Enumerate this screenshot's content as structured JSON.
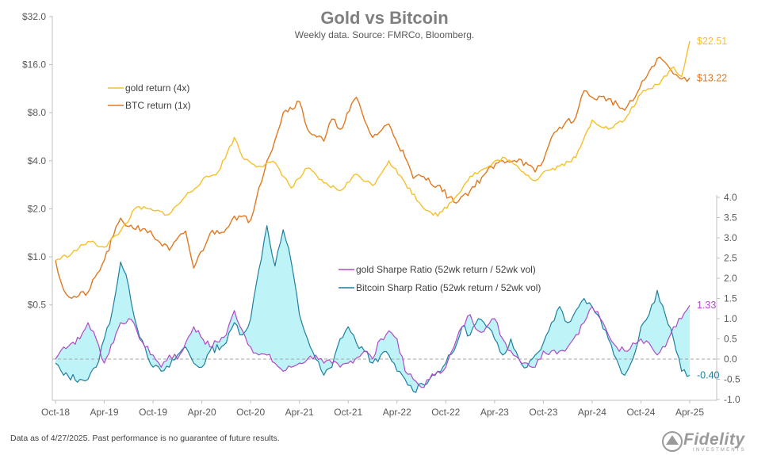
{
  "chart_data": {
    "title": "Gold vs Bitcoin",
    "subtitle": "Weekly data.  Source: FMRCo, Bloomberg.",
    "x_ticks": [
      "Oct-18",
      "Apr-19",
      "Oct-19",
      "Apr-20",
      "Oct-20",
      "Apr-21",
      "Oct-21",
      "Apr-22",
      "Oct-22",
      "Apr-23",
      "Oct-23",
      "Apr-24",
      "Oct-24",
      "Apr-25"
    ],
    "top_panel": {
      "type": "line",
      "y_scale": "log2",
      "y_ticks": [
        "$0.5",
        "$1.0",
        "$2.0",
        "$4.0",
        "$8.0",
        "$16.0",
        "$32.0"
      ],
      "series": [
        {
          "name": "gold return (4x)",
          "color": "#f5c02a",
          "end_label": "$22.51",
          "points": [
            [
              "Oct-18",
              0.95
            ],
            [
              "Dec-18",
              1.05
            ],
            [
              "Feb-19",
              1.25
            ],
            [
              "Apr-19",
              1.15
            ],
            [
              "Jun-19",
              1.45
            ],
            [
              "Aug-19",
              2.05
            ],
            [
              "Oct-19",
              1.95
            ],
            [
              "Dec-19",
              1.85
            ],
            [
              "Feb-20",
              2.4
            ],
            [
              "Apr-20",
              3.0
            ],
            [
              "Jun-20",
              3.4
            ],
            [
              "Aug-20",
              5.6
            ],
            [
              "Sep-20",
              4.2
            ],
            [
              "Nov-20",
              3.7
            ],
            [
              "Jan-21",
              3.9
            ],
            [
              "Mar-21",
              2.7
            ],
            [
              "May-21",
              3.6
            ],
            [
              "Jul-21",
              2.9
            ],
            [
              "Sep-21",
              2.6
            ],
            [
              "Nov-21",
              3.3
            ],
            [
              "Jan-22",
              2.8
            ],
            [
              "Mar-22",
              4.0
            ],
            [
              "May-22",
              2.9
            ],
            [
              "Jul-22",
              2.1
            ],
            [
              "Sep-22",
              1.8
            ],
            [
              "Nov-22",
              2.3
            ],
            [
              "Jan-23",
              3.2
            ],
            [
              "Mar-23",
              3.6
            ],
            [
              "May-23",
              4.2
            ],
            [
              "Jul-23",
              3.6
            ],
            [
              "Sep-23",
              3.0
            ],
            [
              "Oct-23",
              3.4
            ],
            [
              "Dec-23",
              3.7
            ],
            [
              "Feb-24",
              4.2
            ],
            [
              "Apr-24",
              7.2
            ],
            [
              "Jun-24",
              6.3
            ],
            [
              "Aug-24",
              7.2
            ],
            [
              "Oct-24",
              10.5
            ],
            [
              "Dec-24",
              12.0
            ],
            [
              "Feb-25",
              15.5
            ],
            [
              "Mar-25",
              13.5
            ],
            [
              "Apr-25",
              22.51
            ]
          ]
        },
        {
          "name": "BTC return (1x)",
          "color": "#e0781f",
          "end_label": "$13.22",
          "points": [
            [
              "Oct-18",
              0.95
            ],
            [
              "Nov-18",
              0.62
            ],
            [
              "Dec-18",
              0.55
            ],
            [
              "Feb-19",
              0.6
            ],
            [
              "Apr-19",
              0.95
            ],
            [
              "Jun-19",
              1.75
            ],
            [
              "Jul-19",
              1.55
            ],
            [
              "Sep-19",
              1.5
            ],
            [
              "Oct-19",
              1.35
            ],
            [
              "Dec-19",
              1.1
            ],
            [
              "Feb-20",
              1.45
            ],
            [
              "Mar-20",
              0.85
            ],
            [
              "May-20",
              1.4
            ],
            [
              "Jul-20",
              1.5
            ],
            [
              "Aug-20",
              1.8
            ],
            [
              "Oct-20",
              1.7
            ],
            [
              "Nov-20",
              2.7
            ],
            [
              "Dec-20",
              4.0
            ],
            [
              "Jan-21",
              5.4
            ],
            [
              "Feb-21",
              8.0
            ],
            [
              "Apr-21",
              9.4
            ],
            [
              "May-21",
              6.3
            ],
            [
              "Jul-21",
              5.3
            ],
            [
              "Aug-21",
              7.3
            ],
            [
              "Sep-21",
              6.3
            ],
            [
              "Nov-21",
              10.0
            ],
            [
              "Dec-21",
              7.2
            ],
            [
              "Jan-22",
              5.6
            ],
            [
              "Mar-22",
              6.8
            ],
            [
              "May-22",
              4.2
            ],
            [
              "Jun-22",
              3.1
            ],
            [
              "Jul-22",
              3.2
            ],
            [
              "Sep-22",
              2.8
            ],
            [
              "Nov-22",
              2.2
            ],
            [
              "Jan-23",
              2.6
            ],
            [
              "Mar-23",
              3.4
            ],
            [
              "May-23",
              4.0
            ],
            [
              "Jul-23",
              4.1
            ],
            [
              "Sep-23",
              3.4
            ],
            [
              "Oct-23",
              4.0
            ],
            [
              "Nov-23",
              5.6
            ],
            [
              "Dec-23",
              6.5
            ],
            [
              "Feb-24",
              7.5
            ],
            [
              "Mar-24",
              11.0
            ],
            [
              "Apr-24",
              10.0
            ],
            [
              "Jun-24",
              9.8
            ],
            [
              "Aug-24",
              8.3
            ],
            [
              "Sep-24",
              9.5
            ],
            [
              "Nov-24",
              14.5
            ],
            [
              "Dec-24",
              17.5
            ],
            [
              "Jan-25",
              16.5
            ],
            [
              "Feb-25",
              14.0
            ],
            [
              "Mar-25",
              13.0
            ],
            [
              "Apr-25",
              13.22
            ]
          ]
        }
      ]
    },
    "bottom_panel": {
      "type": "line",
      "y_ticks": [
        "-1.0",
        "-0.5",
        "0.0",
        "0.5",
        "1.0",
        "1.5",
        "2.0",
        "2.5",
        "3.0",
        "3.5",
        "4.0"
      ],
      "ylim": [
        -1.0,
        4.0
      ],
      "fill_between": "cyan shading between the two Sharpe series",
      "series": [
        {
          "name": "gold Sharpe Ratio (52wk return / 52wk vol)",
          "color": "#b048c8",
          "end_label": "1.33",
          "points": [
            [
              "Oct-18",
              0.0
            ],
            [
              "Nov-18",
              0.3
            ],
            [
              "Jan-19",
              0.5
            ],
            [
              "Feb-19",
              0.9
            ],
            [
              "Mar-19",
              0.5
            ],
            [
              "Apr-19",
              -0.1
            ],
            [
              "Jun-19",
              0.9
            ],
            [
              "Jul-19",
              1.0
            ],
            [
              "Aug-19",
              0.7
            ],
            [
              "Sep-19",
              0.3
            ],
            [
              "Oct-19",
              0.1
            ],
            [
              "Nov-19",
              -0.2
            ],
            [
              "Dec-19",
              0.1
            ],
            [
              "Jan-20",
              0.0
            ],
            [
              "Feb-20",
              0.4
            ],
            [
              "Mar-20",
              0.8
            ],
            [
              "May-20",
              0.3
            ],
            [
              "Jul-20",
              0.6
            ],
            [
              "Aug-20",
              1.2
            ],
            [
              "Sep-20",
              0.7
            ],
            [
              "Oct-20",
              0.3
            ],
            [
              "Nov-20",
              0.1
            ],
            [
              "Dec-20",
              0.1
            ],
            [
              "Jan-21",
              -0.1
            ],
            [
              "Feb-21",
              -0.3
            ],
            [
              "Mar-21",
              -0.2
            ],
            [
              "Apr-21",
              -0.1
            ],
            [
              "May-21",
              0.0
            ],
            [
              "Jun-21",
              0.1
            ],
            [
              "Jul-21",
              -0.1
            ],
            [
              "Aug-21",
              -0.1
            ],
            [
              "Sep-21",
              -0.2
            ],
            [
              "Oct-21",
              -0.1
            ],
            [
              "Dec-21",
              0.2
            ],
            [
              "Jan-22",
              0.0
            ],
            [
              "Feb-22",
              0.5
            ],
            [
              "Mar-22",
              0.7
            ],
            [
              "Apr-22",
              0.5
            ],
            [
              "May-22",
              -0.3
            ],
            [
              "Jun-22",
              -0.5
            ],
            [
              "Jul-22",
              -0.7
            ],
            [
              "Aug-22",
              -0.5
            ],
            [
              "Sep-22",
              -0.3
            ],
            [
              "Oct-22",
              -0.2
            ],
            [
              "Nov-22",
              0.3
            ],
            [
              "Dec-22",
              0.8
            ],
            [
              "Jan-23",
              1.1
            ],
            [
              "Feb-23",
              0.7
            ],
            [
              "Mar-23",
              0.8
            ],
            [
              "Apr-23",
              1.0
            ],
            [
              "May-23",
              0.5
            ],
            [
              "Jun-23",
              0.2
            ],
            [
              "Jul-23",
              0.0
            ],
            [
              "Aug-23",
              -0.1
            ],
            [
              "Sep-23",
              -0.2
            ],
            [
              "Oct-23",
              0.2
            ],
            [
              "Nov-23",
              0.2
            ],
            [
              "Dec-23",
              0.2
            ],
            [
              "Jan-24",
              0.3
            ],
            [
              "Feb-24",
              0.6
            ],
            [
              "Mar-24",
              0.9
            ],
            [
              "Apr-24",
              1.3
            ],
            [
              "May-24",
              1.0
            ],
            [
              "Jun-24",
              0.6
            ],
            [
              "Jul-24",
              0.3
            ],
            [
              "Aug-24",
              0.2
            ],
            [
              "Sep-24",
              0.4
            ],
            [
              "Oct-24",
              0.5
            ],
            [
              "Nov-24",
              0.4
            ],
            [
              "Dec-24",
              0.1
            ],
            [
              "Jan-25",
              0.3
            ],
            [
              "Feb-25",
              0.8
            ],
            [
              "Mar-25",
              1.0
            ],
            [
              "Apr-25",
              1.33
            ]
          ]
        },
        {
          "name": "Bitcoin Sharp Ratio (52wk return / 52wk vol)",
          "color": "#1f7f9f",
          "end_label": "-0.40",
          "points": [
            [
              "Oct-18",
              -0.1
            ],
            [
              "Nov-18",
              -0.4
            ],
            [
              "Jan-19",
              -0.5
            ],
            [
              "Feb-19",
              -0.5
            ],
            [
              "Mar-19",
              -0.2
            ],
            [
              "Apr-19",
              0.5
            ],
            [
              "May-19",
              1.2
            ],
            [
              "Jun-19",
              2.4
            ],
            [
              "Jul-19",
              1.8
            ],
            [
              "Aug-19",
              0.8
            ],
            [
              "Sep-19",
              0.3
            ],
            [
              "Oct-19",
              -0.2
            ],
            [
              "Nov-19",
              -0.3
            ],
            [
              "Dec-19",
              -0.2
            ],
            [
              "Jan-20",
              0.1
            ],
            [
              "Feb-20",
              0.3
            ],
            [
              "Mar-20",
              -0.1
            ],
            [
              "Apr-20",
              -0.2
            ],
            [
              "May-20",
              0.2
            ],
            [
              "Jul-20",
              0.4
            ],
            [
              "Aug-20",
              0.9
            ],
            [
              "Sep-20",
              0.6
            ],
            [
              "Oct-20",
              1.0
            ],
            [
              "Nov-20",
              2.2
            ],
            [
              "Dec-20",
              3.3
            ],
            [
              "Jan-21",
              2.3
            ],
            [
              "Feb-21",
              3.2
            ],
            [
              "Mar-21",
              2.4
            ],
            [
              "Apr-21",
              1.1
            ],
            [
              "May-21",
              0.5
            ],
            [
              "Jun-21",
              0.0
            ],
            [
              "Jul-21",
              -0.4
            ],
            [
              "Aug-21",
              -0.2
            ],
            [
              "Sep-21",
              0.5
            ],
            [
              "Oct-21",
              0.8
            ],
            [
              "Nov-21",
              0.4
            ],
            [
              "Dec-21",
              0.2
            ],
            [
              "Jan-22",
              -0.1
            ],
            [
              "Feb-22",
              0.1
            ],
            [
              "Mar-22",
              0.1
            ],
            [
              "Apr-22",
              -0.3
            ],
            [
              "May-22",
              -0.5
            ],
            [
              "Jun-22",
              -0.8
            ],
            [
              "Jul-22",
              -0.6
            ],
            [
              "Aug-22",
              -0.5
            ],
            [
              "Sep-22",
              -0.3
            ],
            [
              "Oct-22",
              -0.1
            ],
            [
              "Nov-22",
              0.2
            ],
            [
              "Dec-22",
              0.8
            ],
            [
              "Jan-23",
              0.6
            ],
            [
              "Feb-23",
              1.0
            ],
            [
              "Mar-23",
              0.8
            ],
            [
              "Apr-23",
              0.5
            ],
            [
              "May-23",
              0.1
            ],
            [
              "Jun-23",
              0.5
            ],
            [
              "Jul-23",
              0.0
            ],
            [
              "Aug-23",
              -0.2
            ],
            [
              "Sep-23",
              0.1
            ],
            [
              "Oct-23",
              0.4
            ],
            [
              "Nov-23",
              0.9
            ],
            [
              "Dec-23",
              1.3
            ],
            [
              "Jan-24",
              0.9
            ],
            [
              "Feb-24",
              1.2
            ],
            [
              "Mar-24",
              1.5
            ],
            [
              "Apr-24",
              1.3
            ],
            [
              "May-24",
              1.0
            ],
            [
              "Jun-24",
              0.5
            ],
            [
              "Jul-24",
              0.0
            ],
            [
              "Aug-24",
              -0.4
            ],
            [
              "Sep-24",
              0.0
            ],
            [
              "Oct-24",
              0.8
            ],
            [
              "Nov-24",
              1.1
            ],
            [
              "Dec-24",
              1.7
            ],
            [
              "Jan-25",
              1.1
            ],
            [
              "Feb-25",
              0.5
            ],
            [
              "Mar-25",
              -0.3
            ],
            [
              "Apr-25",
              -0.4
            ]
          ]
        }
      ]
    }
  },
  "footnote": "Data as of 4/27/2025. Past performance is no guarantee of future results.",
  "logo": {
    "text": "Fidelity",
    "subtext": "INVESTMENTS"
  }
}
